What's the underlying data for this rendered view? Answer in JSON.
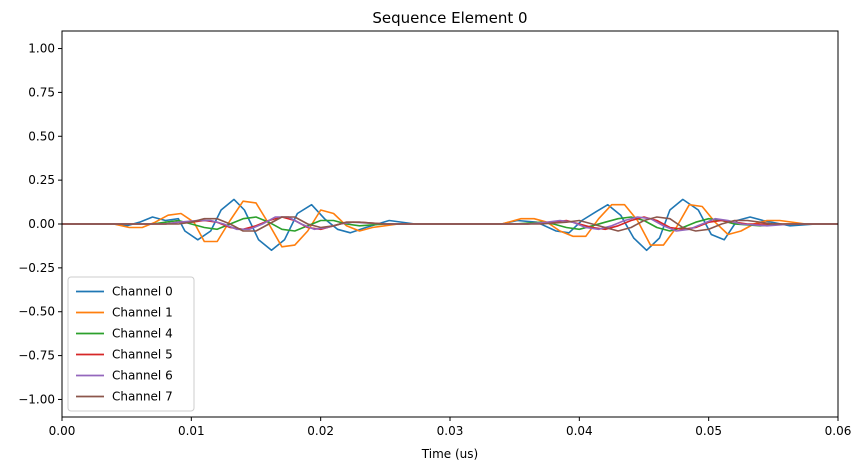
{
  "chart_data": {
    "type": "line",
    "title": "Sequence Element 0",
    "xlabel": "Time (us)",
    "ylabel": "",
    "xlim": [
      0,
      0.06
    ],
    "ylim": [
      -1.1,
      1.1
    ],
    "xticks": [
      {
        "value": 0.0,
        "label": "0.00"
      },
      {
        "value": 0.01,
        "label": "0.01"
      },
      {
        "value": 0.02,
        "label": "0.02"
      },
      {
        "value": 0.03,
        "label": "0.03"
      },
      {
        "value": 0.04,
        "label": "0.04"
      },
      {
        "value": 0.05,
        "label": "0.05"
      },
      {
        "value": 0.06,
        "label": "0.06"
      }
    ],
    "yticks": [
      {
        "value": 1.0,
        "label": "1.00"
      },
      {
        "value": 0.75,
        "label": "0.75"
      },
      {
        "value": 0.5,
        "label": "0.50"
      },
      {
        "value": 0.25,
        "label": "0.25"
      },
      {
        "value": 0.0,
        "label": "0.00"
      },
      {
        "value": -0.25,
        "label": "−0.25"
      },
      {
        "value": -0.5,
        "label": "−0.50"
      },
      {
        "value": -0.75,
        "label": "−0.75"
      },
      {
        "value": -1.0,
        "label": "−1.00"
      }
    ],
    "grid": false,
    "legend_position": "lower-left",
    "series": [
      {
        "name": "Channel 0",
        "color": "#1f77b4",
        "points": [
          [
            0.0,
            0.0
          ],
          [
            0.004,
            0.0
          ],
          [
            0.005,
            -0.01
          ],
          [
            0.006,
            0.01
          ],
          [
            0.007,
            0.04
          ],
          [
            0.008,
            0.02
          ],
          [
            0.009,
            0.03
          ],
          [
            0.0095,
            -0.04
          ],
          [
            0.0105,
            -0.09
          ],
          [
            0.0115,
            -0.04
          ],
          [
            0.0123,
            0.08
          ],
          [
            0.0133,
            0.14
          ],
          [
            0.0141,
            0.08
          ],
          [
            0.0152,
            -0.09
          ],
          [
            0.0162,
            -0.15
          ],
          [
            0.0172,
            -0.09
          ],
          [
            0.0182,
            0.06
          ],
          [
            0.0193,
            0.11
          ],
          [
            0.0203,
            0.03
          ],
          [
            0.0213,
            -0.03
          ],
          [
            0.0223,
            -0.05
          ],
          [
            0.0235,
            -0.02
          ],
          [
            0.0253,
            0.02
          ],
          [
            0.0273,
            0.0
          ],
          [
            0.034,
            0.0
          ],
          [
            0.0352,
            0.02
          ],
          [
            0.0367,
            0.01
          ],
          [
            0.0382,
            -0.04
          ],
          [
            0.0392,
            -0.05
          ],
          [
            0.0402,
            0.02
          ],
          [
            0.0413,
            0.07
          ],
          [
            0.0422,
            0.11
          ],
          [
            0.0432,
            0.05
          ],
          [
            0.0442,
            -0.08
          ],
          [
            0.0452,
            -0.15
          ],
          [
            0.0462,
            -0.08
          ],
          [
            0.047,
            0.08
          ],
          [
            0.048,
            0.14
          ],
          [
            0.0492,
            0.08
          ],
          [
            0.0502,
            -0.06
          ],
          [
            0.0512,
            -0.09
          ],
          [
            0.0522,
            0.02
          ],
          [
            0.0532,
            0.04
          ],
          [
            0.0542,
            0.02
          ],
          [
            0.0563,
            -0.01
          ],
          [
            0.0583,
            0.0
          ],
          [
            0.06,
            0.0
          ]
        ]
      },
      {
        "name": "Channel 1",
        "color": "#ff7f0e",
        "points": [
          [
            0.0,
            0.0
          ],
          [
            0.004,
            0.0
          ],
          [
            0.0052,
            -0.02
          ],
          [
            0.0062,
            -0.02
          ],
          [
            0.0072,
            0.01
          ],
          [
            0.0082,
            0.05
          ],
          [
            0.0092,
            0.06
          ],
          [
            0.0102,
            0.01
          ],
          [
            0.011,
            -0.1
          ],
          [
            0.012,
            -0.1
          ],
          [
            0.013,
            0.02
          ],
          [
            0.014,
            0.13
          ],
          [
            0.015,
            0.12
          ],
          [
            0.016,
            0.0
          ],
          [
            0.017,
            -0.13
          ],
          [
            0.018,
            -0.12
          ],
          [
            0.019,
            -0.04
          ],
          [
            0.02,
            0.08
          ],
          [
            0.021,
            0.06
          ],
          [
            0.022,
            -0.01
          ],
          [
            0.023,
            -0.04
          ],
          [
            0.024,
            -0.02
          ],
          [
            0.026,
            0.0
          ],
          [
            0.034,
            0.0
          ],
          [
            0.0355,
            0.03
          ],
          [
            0.0365,
            0.03
          ],
          [
            0.0375,
            0.01
          ],
          [
            0.0385,
            -0.04
          ],
          [
            0.0395,
            -0.07
          ],
          [
            0.0405,
            -0.07
          ],
          [
            0.0415,
            0.03
          ],
          [
            0.0425,
            0.11
          ],
          [
            0.0435,
            0.11
          ],
          [
            0.0445,
            0.02
          ],
          [
            0.0455,
            -0.12
          ],
          [
            0.0465,
            -0.12
          ],
          [
            0.0475,
            -0.02
          ],
          [
            0.0485,
            0.11
          ],
          [
            0.0495,
            0.1
          ],
          [
            0.0505,
            0.01
          ],
          [
            0.0515,
            -0.06
          ],
          [
            0.0525,
            -0.04
          ],
          [
            0.0535,
            0.0
          ],
          [
            0.0545,
            0.02
          ],
          [
            0.0555,
            0.02
          ],
          [
            0.0575,
            0.0
          ],
          [
            0.06,
            0.0
          ]
        ]
      },
      {
        "name": "Channel 4",
        "color": "#2ca02c",
        "points": [
          [
            0.0,
            0.0
          ],
          [
            0.007,
            0.0
          ],
          [
            0.008,
            0.01
          ],
          [
            0.009,
            0.02
          ],
          [
            0.01,
            0.0
          ],
          [
            0.011,
            -0.02
          ],
          [
            0.012,
            -0.03
          ],
          [
            0.013,
            0.0
          ],
          [
            0.014,
            0.03
          ],
          [
            0.015,
            0.04
          ],
          [
            0.016,
            0.01
          ],
          [
            0.017,
            -0.03
          ],
          [
            0.018,
            -0.04
          ],
          [
            0.019,
            -0.01
          ],
          [
            0.02,
            0.02
          ],
          [
            0.021,
            0.02
          ],
          [
            0.022,
            0.0
          ],
          [
            0.023,
            -0.01
          ],
          [
            0.025,
            0.0
          ],
          [
            0.035,
            0.0
          ],
          [
            0.037,
            0.01
          ],
          [
            0.038,
            0.0
          ],
          [
            0.039,
            -0.02
          ],
          [
            0.04,
            -0.03
          ],
          [
            0.041,
            -0.01
          ],
          [
            0.042,
            0.01
          ],
          [
            0.043,
            0.03
          ],
          [
            0.044,
            0.04
          ],
          [
            0.045,
            0.02
          ],
          [
            0.046,
            -0.02
          ],
          [
            0.047,
            -0.04
          ],
          [
            0.048,
            -0.02
          ],
          [
            0.049,
            0.01
          ],
          [
            0.05,
            0.03
          ],
          [
            0.051,
            0.02
          ],
          [
            0.052,
            0.0
          ],
          [
            0.054,
            -0.01
          ],
          [
            0.056,
            0.0
          ],
          [
            0.06,
            0.0
          ]
        ]
      },
      {
        "name": "Channel 5",
        "color": "#d62728",
        "points": [
          [
            0.0,
            0.0
          ],
          [
            0.008,
            0.0
          ],
          [
            0.009,
            0.01
          ],
          [
            0.01,
            0.01
          ],
          [
            0.011,
            0.02
          ],
          [
            0.012,
            0.01
          ],
          [
            0.013,
            -0.02
          ],
          [
            0.014,
            -0.03
          ],
          [
            0.015,
            -0.01
          ],
          [
            0.016,
            0.02
          ],
          [
            0.017,
            0.04
          ],
          [
            0.018,
            0.02
          ],
          [
            0.019,
            -0.02
          ],
          [
            0.02,
            -0.03
          ],
          [
            0.021,
            -0.01
          ],
          [
            0.022,
            0.01
          ],
          [
            0.023,
            0.01
          ],
          [
            0.025,
            0.0
          ],
          [
            0.036,
            0.0
          ],
          [
            0.038,
            0.01
          ],
          [
            0.039,
            0.02
          ],
          [
            0.04,
            0.0
          ],
          [
            0.041,
            -0.02
          ],
          [
            0.042,
            -0.03
          ],
          [
            0.043,
            -0.01
          ],
          [
            0.044,
            0.02
          ],
          [
            0.045,
            0.04
          ],
          [
            0.046,
            0.02
          ],
          [
            0.047,
            -0.02
          ],
          [
            0.048,
            -0.03
          ],
          [
            0.049,
            -0.02
          ],
          [
            0.05,
            0.01
          ],
          [
            0.051,
            0.02
          ],
          [
            0.052,
            0.01
          ],
          [
            0.053,
            0.0
          ],
          [
            0.055,
            0.0
          ],
          [
            0.06,
            0.0
          ]
        ]
      },
      {
        "name": "Channel 6",
        "color": "#9467bd",
        "points": [
          [
            0.0,
            0.0
          ],
          [
            0.008,
            0.0
          ],
          [
            0.009,
            0.01
          ],
          [
            0.0105,
            0.02
          ],
          [
            0.0115,
            0.02
          ],
          [
            0.0125,
            0.0
          ],
          [
            0.0135,
            -0.03
          ],
          [
            0.0145,
            -0.03
          ],
          [
            0.0155,
            0.0
          ],
          [
            0.0165,
            0.04
          ],
          [
            0.0175,
            0.04
          ],
          [
            0.0185,
            0.0
          ],
          [
            0.0195,
            -0.03
          ],
          [
            0.0205,
            -0.02
          ],
          [
            0.0215,
            0.0
          ],
          [
            0.0225,
            0.01
          ],
          [
            0.025,
            0.0
          ],
          [
            0.036,
            0.0
          ],
          [
            0.0375,
            0.01
          ],
          [
            0.0385,
            0.02
          ],
          [
            0.0395,
            0.01
          ],
          [
            0.0405,
            -0.02
          ],
          [
            0.0415,
            -0.03
          ],
          [
            0.0425,
            -0.01
          ],
          [
            0.0435,
            0.02
          ],
          [
            0.0445,
            0.04
          ],
          [
            0.0455,
            0.03
          ],
          [
            0.0465,
            -0.01
          ],
          [
            0.0475,
            -0.04
          ],
          [
            0.0485,
            -0.03
          ],
          [
            0.0495,
            0.0
          ],
          [
            0.0505,
            0.03
          ],
          [
            0.0515,
            0.02
          ],
          [
            0.0525,
            0.0
          ],
          [
            0.0545,
            -0.01
          ],
          [
            0.0565,
            0.0
          ],
          [
            0.06,
            0.0
          ]
        ]
      },
      {
        "name": "Channel 7",
        "color": "#8c564b",
        "points": [
          [
            0.0,
            0.0
          ],
          [
            0.009,
            0.0
          ],
          [
            0.01,
            0.01
          ],
          [
            0.011,
            0.03
          ],
          [
            0.012,
            0.03
          ],
          [
            0.013,
            0.0
          ],
          [
            0.014,
            -0.04
          ],
          [
            0.015,
            -0.04
          ],
          [
            0.016,
            0.0
          ],
          [
            0.017,
            0.04
          ],
          [
            0.018,
            0.04
          ],
          [
            0.019,
            0.0
          ],
          [
            0.02,
            -0.02
          ],
          [
            0.021,
            -0.01
          ],
          [
            0.022,
            0.01
          ],
          [
            0.023,
            0.01
          ],
          [
            0.025,
            0.0
          ],
          [
            0.037,
            0.0
          ],
          [
            0.039,
            0.01
          ],
          [
            0.04,
            0.02
          ],
          [
            0.041,
            0.0
          ],
          [
            0.042,
            -0.02
          ],
          [
            0.043,
            -0.04
          ],
          [
            0.044,
            -0.02
          ],
          [
            0.045,
            0.02
          ],
          [
            0.046,
            0.04
          ],
          [
            0.047,
            0.03
          ],
          [
            0.048,
            -0.02
          ],
          [
            0.049,
            -0.04
          ],
          [
            0.05,
            -0.03
          ],
          [
            0.051,
            0.0
          ],
          [
            0.052,
            0.02
          ],
          [
            0.053,
            0.02
          ],
          [
            0.055,
            0.0
          ],
          [
            0.06,
            0.0
          ]
        ]
      }
    ]
  }
}
